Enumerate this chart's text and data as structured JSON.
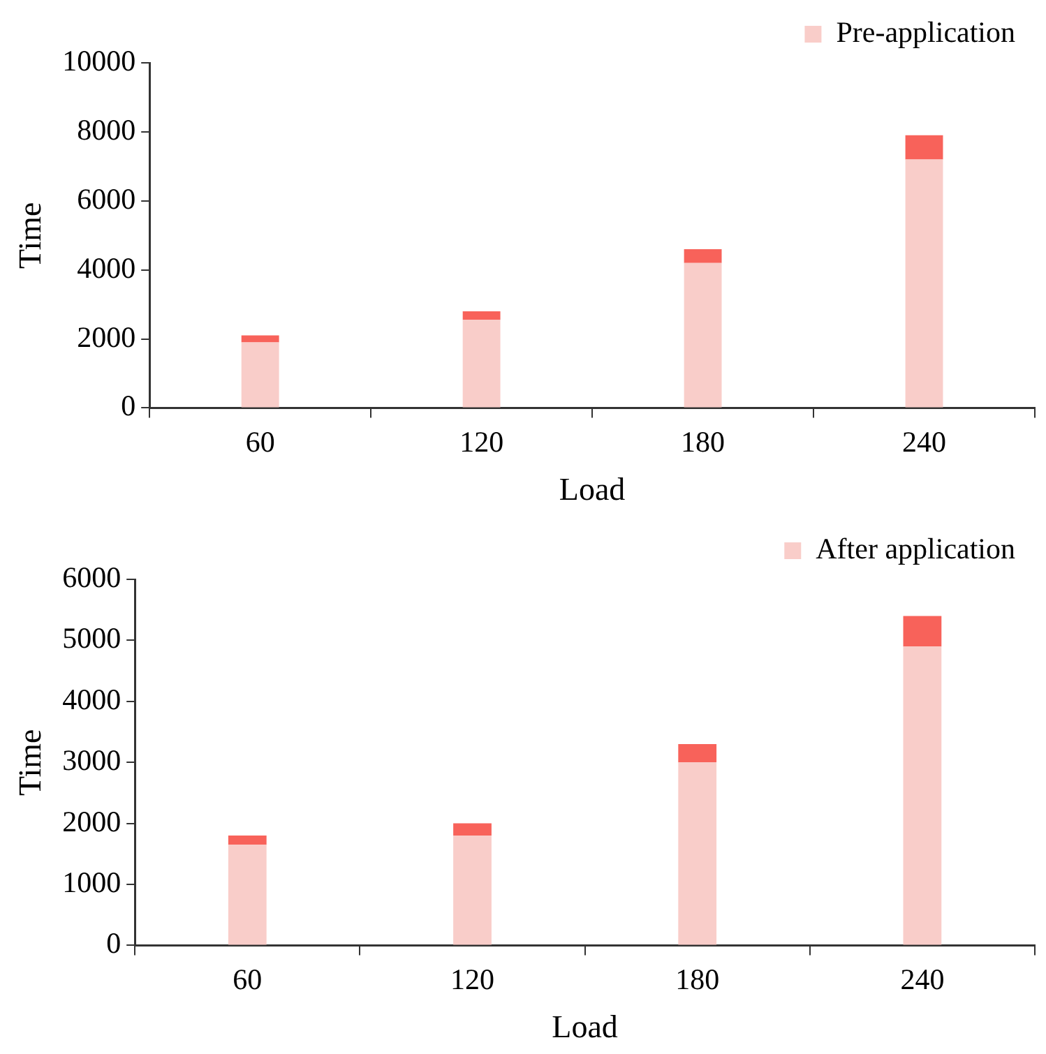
{
  "chart_data": [
    {
      "type": "bar",
      "stacked": true,
      "xlabel": "Load",
      "ylabel": "Time",
      "categories": [
        "60",
        "120",
        "180",
        "240"
      ],
      "ylim": [
        0,
        10000
      ],
      "yticks": [
        0,
        2000,
        4000,
        6000,
        8000,
        10000
      ],
      "grid": false,
      "legend": "top right",
      "series": [
        {
          "name": "Pre-application",
          "color": "#f9cdc9",
          "values": [
            1900,
            2550,
            4200,
            7200
          ]
        },
        {
          "color": "#f8625a",
          "values": [
            200,
            250,
            400,
            700
          ]
        }
      ]
    },
    {
      "type": "bar",
      "stacked": true,
      "xlabel": "Load",
      "ylabel": "Time",
      "categories": [
        "60",
        "120",
        "180",
        "240"
      ],
      "ylim": [
        0,
        6000
      ],
      "yticks": [
        0,
        1000,
        2000,
        3000,
        4000,
        5000,
        6000
      ],
      "grid": false,
      "legend": "top right",
      "series": [
        {
          "name": "After application",
          "color": "#f9cdc9",
          "values": [
            1650,
            1800,
            3000,
            4900
          ]
        },
        {
          "color": "#f8625a",
          "values": [
            150,
            200,
            300,
            500
          ]
        }
      ]
    }
  ]
}
